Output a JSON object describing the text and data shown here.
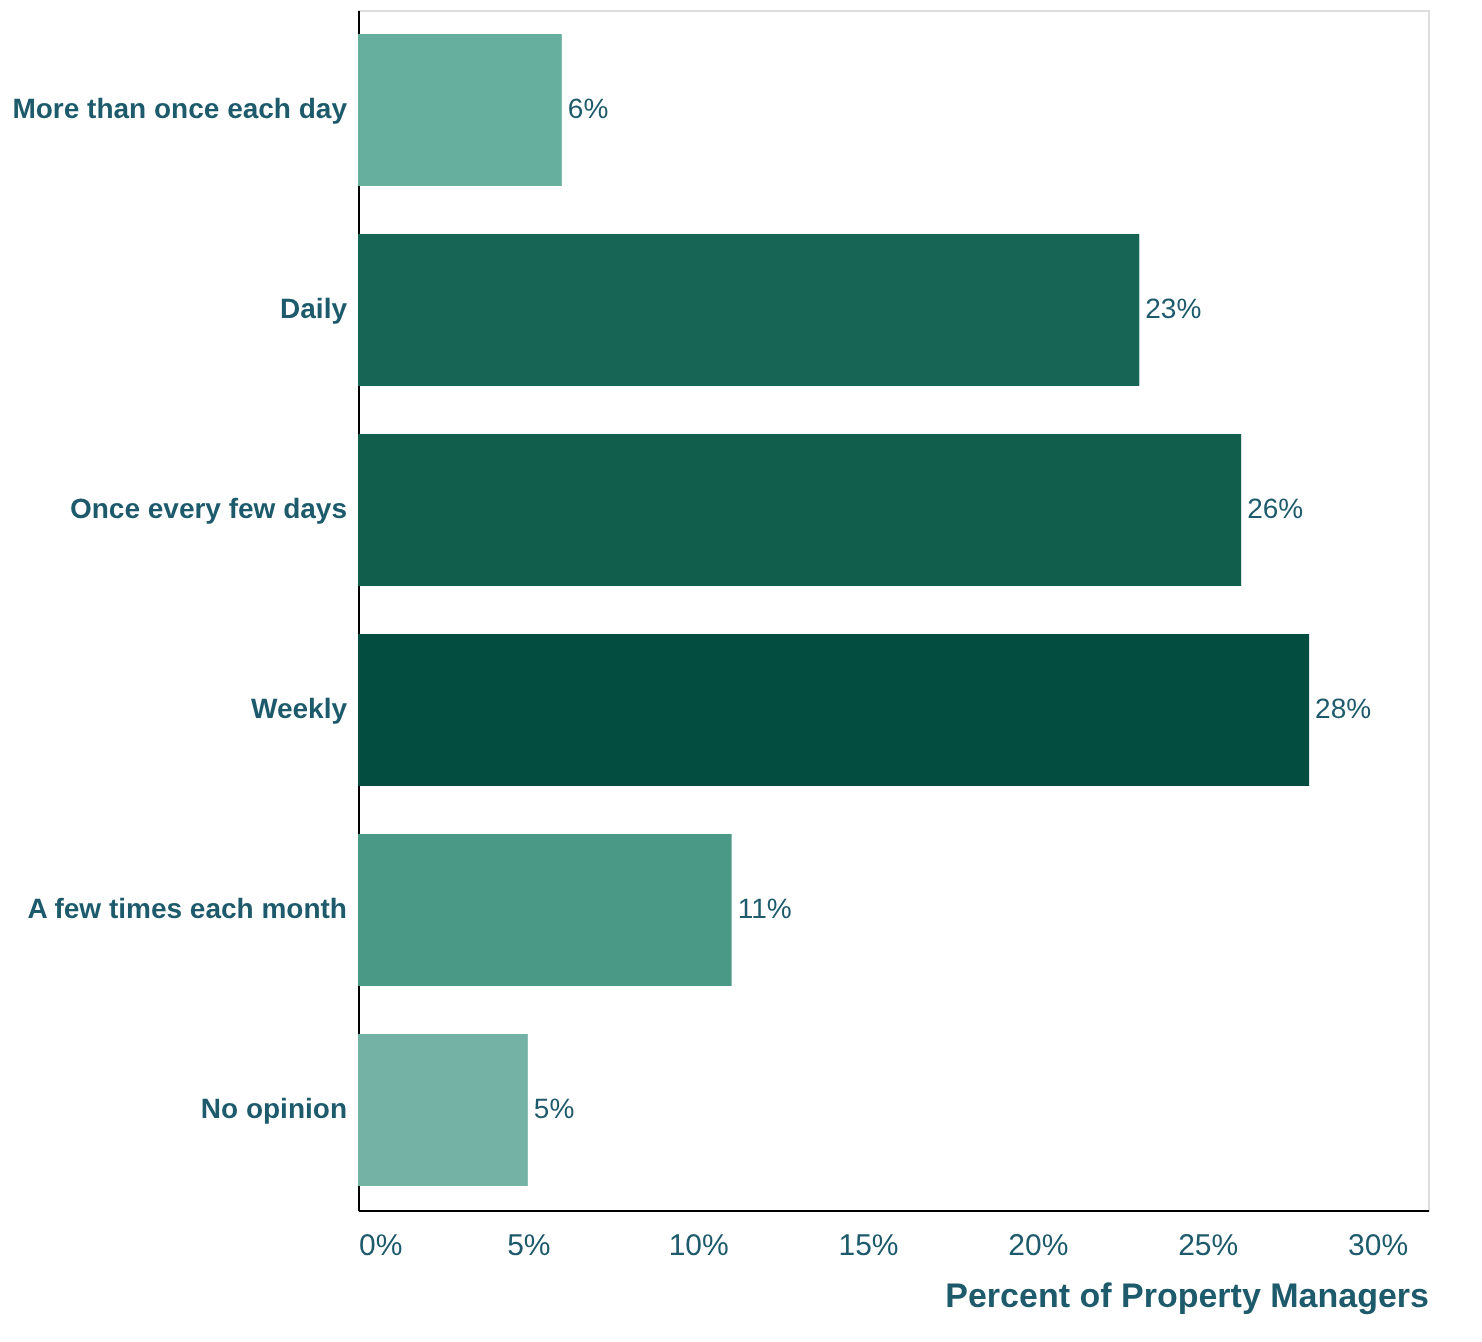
{
  "chart_data": {
    "type": "bar",
    "orientation": "horizontal",
    "xlabel": "Percent of Property Managers",
    "categories": [
      "More than once each day",
      "Daily",
      "Once every few days",
      "Weekly",
      "A few times each month",
      "No opinion"
    ],
    "values": [
      6,
      23,
      26,
      28,
      11,
      5
    ],
    "colors": [
      "#66ae9e",
      "#176655",
      "#125e4d",
      "#024d40",
      "#4a9986",
      "#74b2a5"
    ],
    "value_labels": [
      "6%",
      "23%",
      "26%",
      "28%",
      "11%",
      "5%"
    ],
    "xlim": [
      0,
      31.5
    ],
    "xticks": [
      {
        "value": 0,
        "label": "0%"
      },
      {
        "value": 5,
        "label": "5%"
      },
      {
        "value": 10,
        "label": "10%"
      },
      {
        "value": 15,
        "label": "15%"
      },
      {
        "value": 20,
        "label": "20%"
      },
      {
        "value": 25,
        "label": "25%"
      },
      {
        "value": 30,
        "label": "30%"
      }
    ],
    "grid": false
  }
}
